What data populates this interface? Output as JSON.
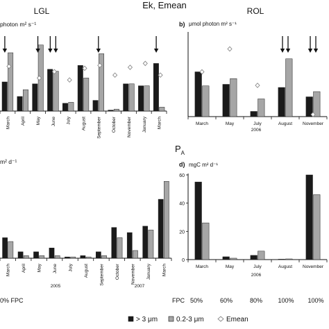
{
  "figure": {
    "main_title": "Ek, Emean",
    "lgl_title": "LGL",
    "rol_title": "ROL",
    "pa_title": "P",
    "pa_sub": "A",
    "fpc_label": "FPC",
    "fpc_left": "0% FPC",
    "fpc_values": [
      "50%",
      "60%",
      "80%",
      "100%",
      "100%"
    ],
    "legend": {
      "s1": "> 3 μm",
      "s2": "0.2-3 μm",
      "s3": "Emean",
      "colors": {
        "s1": "#1a1a1a",
        "s2": "#a6a6a6",
        "s3": "#ffffff"
      }
    }
  },
  "chart_data": [
    {
      "id": "a",
      "type": "bar",
      "panel_label": "",
      "ylabel": "photon m² s⁻¹",
      "categories": [
        "March",
        "April",
        "May",
        "June",
        "July",
        "August",
        "September",
        "October",
        "November",
        "January",
        "March"
      ],
      "series": [
        {
          "name": "> 3 μm",
          "values": [
            300,
            150,
            280,
            430,
            80,
            470,
            110,
            10,
            280,
            260,
            490
          ]
        },
        {
          "name": "0.2-3 μm",
          "values": [
            600,
            220,
            680,
            410,
            90,
            340,
            590,
            20,
            280,
            260,
            40
          ]
        },
        {
          "name": "Emean",
          "values": [
            460,
            null,
            340,
            405,
            320,
            440,
            470,
            370,
            450,
            490,
            370
          ]
        }
      ],
      "arrows": [
        "March",
        "May",
        "June",
        "June",
        "September",
        "March"
      ],
      "ylim": [
        0,
        800
      ]
    },
    {
      "id": "b",
      "type": "bar",
      "panel_label": "b)",
      "ylabel": "μmol photon m² s⁻¹",
      "yticks": [],
      "categories": [
        "March",
        "May",
        "July",
        "August",
        "November"
      ],
      "year_label": "2006",
      "series": [
        {
          "name": "> 3 μm",
          "values": [
            430,
            310,
            50,
            280,
            190
          ]
        },
        {
          "name": "0.2-3 μm",
          "values": [
            295,
            365,
            170,
            555,
            240
          ]
        },
        {
          "name": "Emean",
          "values": [
            430,
            650,
            300,
            null,
            20
          ]
        }
      ],
      "arrows": [
        "August",
        "August",
        "November",
        "November"
      ],
      "ylim": [
        0,
        800
      ]
    },
    {
      "id": "c",
      "type": "bar",
      "panel_label": "",
      "ylabel": "m² d⁻¹",
      "categories": [
        "March",
        "April",
        "May",
        "June",
        "July",
        "August",
        "September",
        "October",
        "November",
        "January",
        "March"
      ],
      "year_labels": [
        "2005",
        "2007"
      ],
      "series": [
        {
          "name": "> 3 μm",
          "values": [
            16,
            5,
            5,
            8,
            1,
            2,
            5,
            24,
            20,
            25,
            46
          ]
        },
        {
          "name": "0.2-3 μm",
          "values": [
            13,
            2,
            2,
            2,
            1,
            1,
            2,
            16,
            6,
            22,
            60
          ]
        }
      ],
      "ylim": [
        0,
        65
      ]
    },
    {
      "id": "d",
      "type": "bar",
      "panel_label": "d)",
      "ylabel": "mgC m² d⁻¹",
      "yticks": [
        "0",
        "20",
        "40",
        "60"
      ],
      "categories": [
        "March",
        "May",
        "July",
        "August",
        "November"
      ],
      "year_label": "2006",
      "series": [
        {
          "name": "> 3 μm",
          "values": [
            55,
            2,
            3,
            0.3,
            60
          ]
        },
        {
          "name": "0.2-3 μm",
          "values": [
            26,
            1,
            6,
            0.5,
            46
          ]
        }
      ],
      "ylim": [
        0,
        60
      ]
    }
  ]
}
